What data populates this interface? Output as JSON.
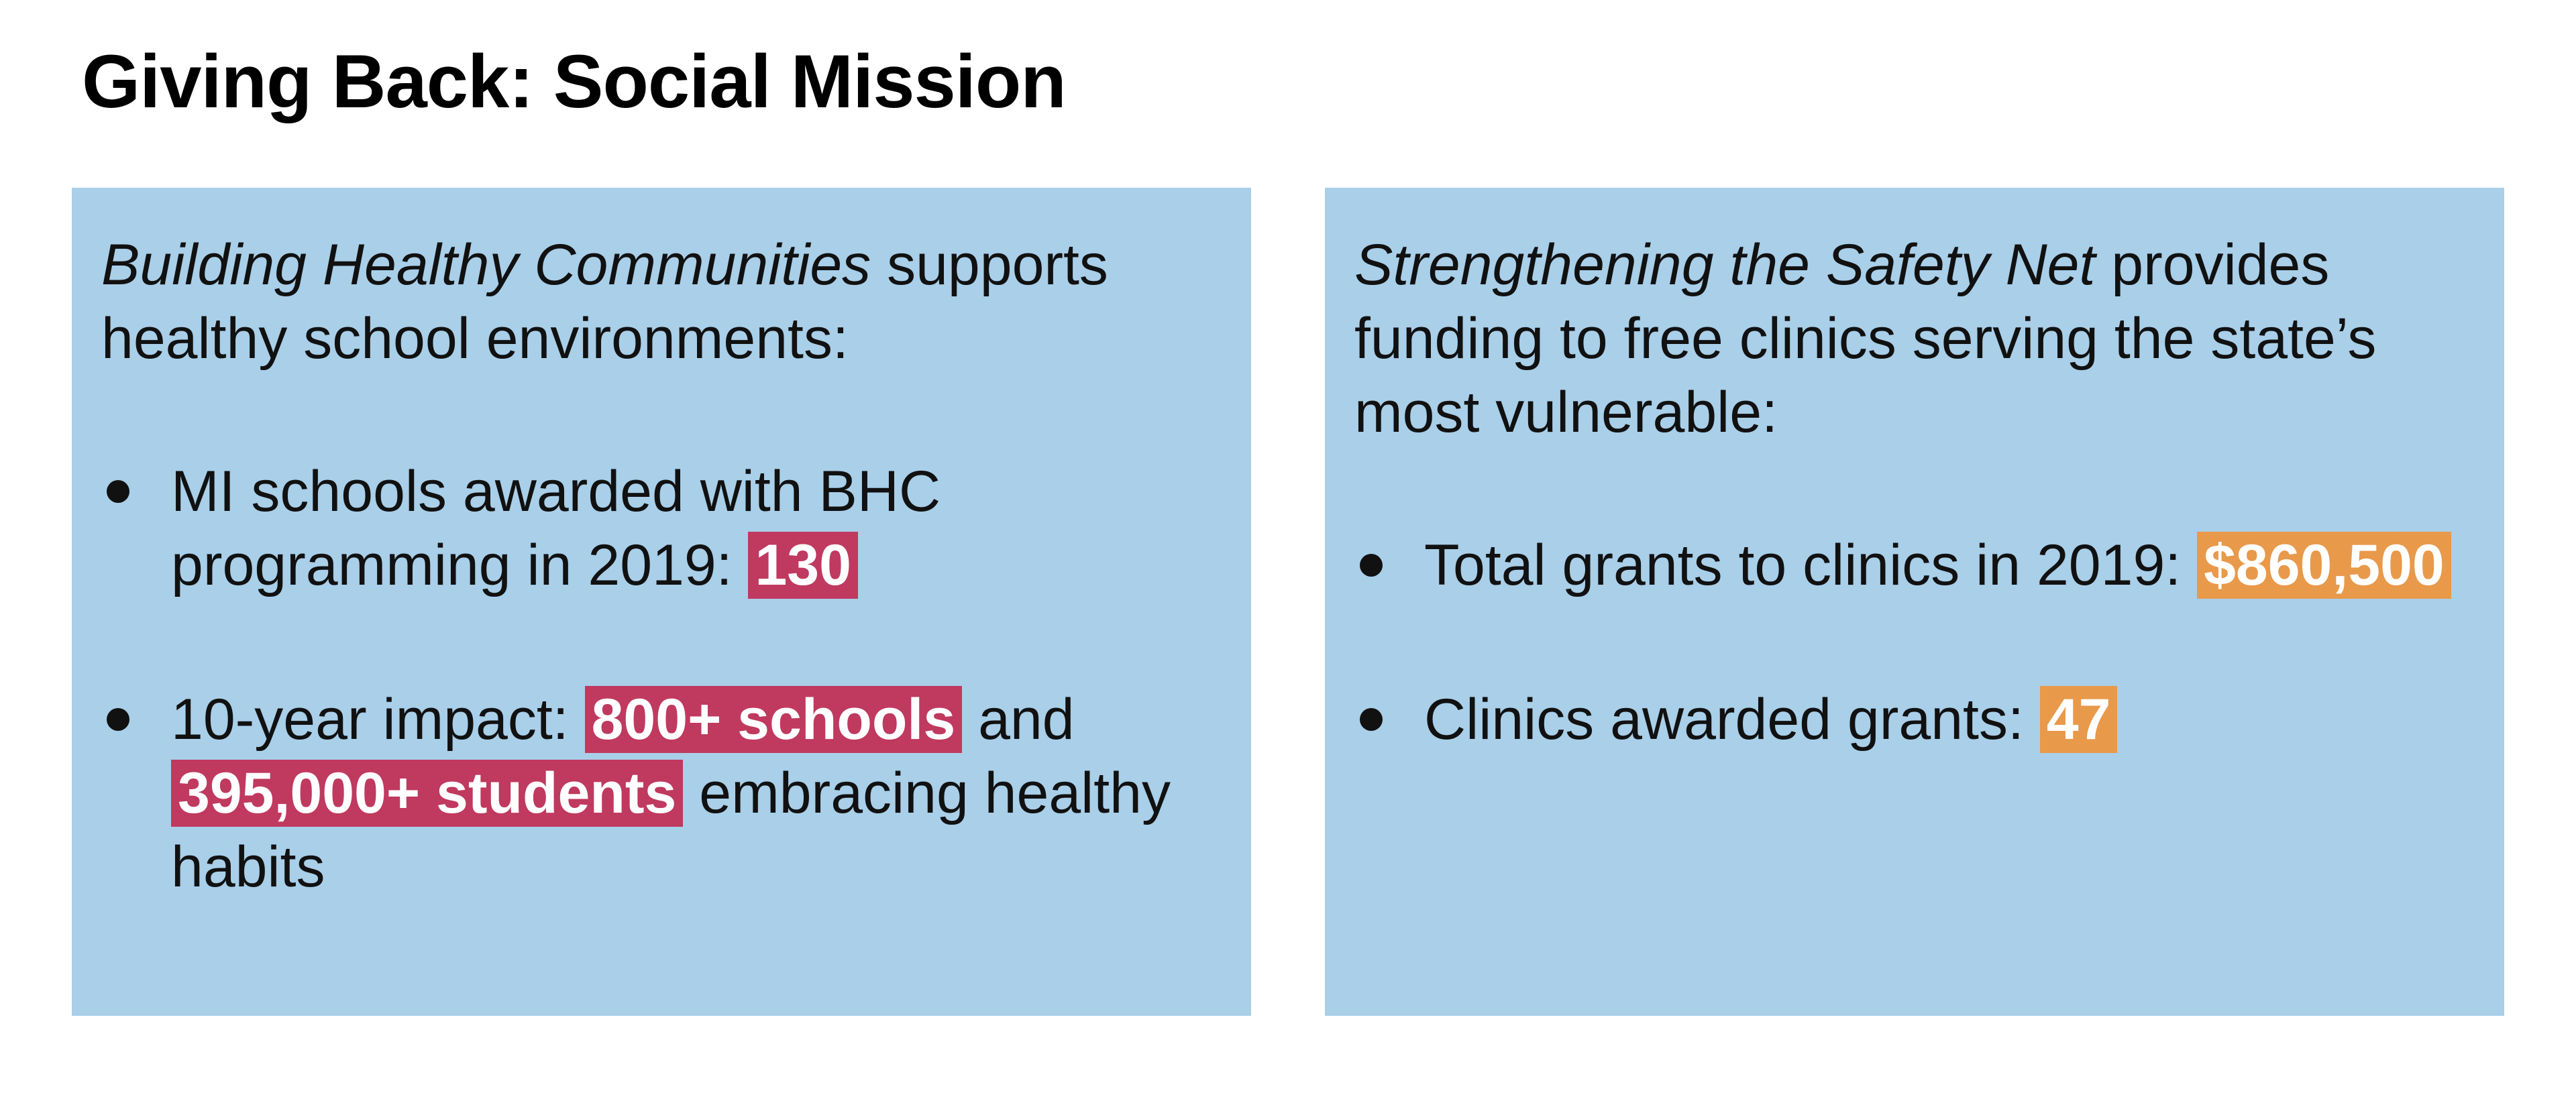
{
  "title": "Giving Back: Social Mission",
  "colors": {
    "panel_background": "#a9cfe9",
    "highlight_red": "#c0395f",
    "highlight_orange": "#e8994a"
  },
  "left_panel": {
    "intro_program": "Building Healthy Communities",
    "intro_rest": " supports healthy school environments:",
    "bullet1": {
      "text": "MI schools awarded with BHC programming in 2019: ",
      "value": "130"
    },
    "bullet2": {
      "text_before": "10-year impact: ",
      "schools": "800+ schools",
      "and": " and ",
      "students": "395,000+ students",
      "text_after": " embracing healthy habits"
    }
  },
  "right_panel": {
    "intro_program": "Strengthening the Safety Net",
    "intro_rest": " provides funding to free clinics serving the state’s most vulnerable:",
    "bullet1": {
      "text": "Total grants to clinics in 2019: ",
      "value": "$860,500"
    },
    "bullet2": {
      "text": "Clinics awarded grants: ",
      "value": "47"
    }
  }
}
